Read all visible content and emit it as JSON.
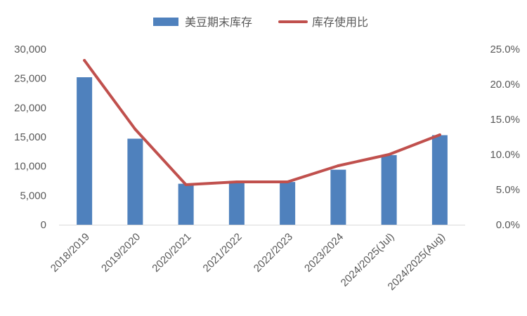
{
  "chart_data": {
    "type": "bar",
    "categories": [
      "2018/2019",
      "2019/2020",
      "2020/2021",
      "2021/2022",
      "2022/2023",
      "2023/2024",
      "2024/2025(Jul)",
      "2024/2025(Aug)"
    ],
    "series": [
      {
        "name": "美豆期末库存",
        "type": "bar",
        "axis": "left",
        "color": "#4F81BD",
        "values": [
          25200,
          14700,
          7000,
          7500,
          7300,
          9400,
          11900,
          15300
        ]
      },
      {
        "name": "库存使用比",
        "type": "line",
        "axis": "right",
        "color": "#C0504D",
        "values": [
          23.4,
          13.6,
          5.7,
          6.1,
          6.1,
          8.4,
          10.0,
          12.8
        ]
      }
    ],
    "y_left": {
      "ylim": [
        0,
        30000
      ],
      "ticks": [
        0,
        5000,
        10000,
        15000,
        20000,
        25000,
        30000
      ],
      "tick_labels": [
        "0",
        "5,000",
        "10,000",
        "15,000",
        "20,000",
        "25,000",
        "30,000"
      ]
    },
    "y_right": {
      "ylim": [
        0,
        25
      ],
      "ticks": [
        0,
        5,
        10,
        15,
        20,
        25
      ],
      "tick_labels": [
        "0.0%",
        "5.0%",
        "10.0%",
        "15.0%",
        "20.0%",
        "25.0%"
      ]
    },
    "legend_position": "top-center",
    "grid": false,
    "title": "",
    "xlabel": "",
    "ylabel": ""
  }
}
